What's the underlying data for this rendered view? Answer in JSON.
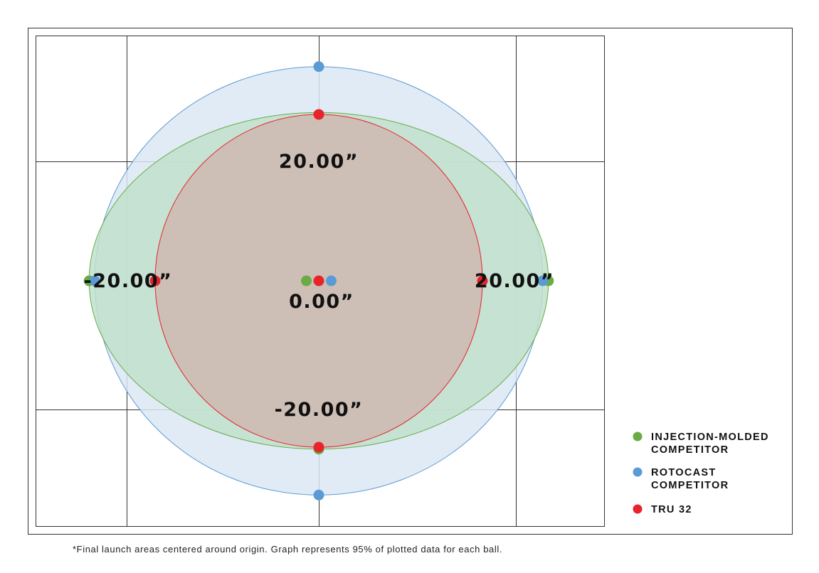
{
  "chart_data": {
    "type": "scatter",
    "units": "inches",
    "xlim": [
      -29.7,
      29.6
    ],
    "ylim": [
      -24.6,
      24.6
    ],
    "grid": true,
    "legend_position": "bottom-right",
    "tick_labels": {
      "x": [
        "-20.00”",
        "0.00”",
        "20.00”"
      ],
      "y": [
        "20.00”",
        "-20.00”"
      ]
    },
    "series": [
      {
        "name": "INJECTION-MOLDED COMPETITOR",
        "legend_lines": [
          "INJECTION-MOLDED",
          "COMPETITOR"
        ],
        "color": "#6aab45",
        "fill": "#bfe1cd",
        "ellipse": {
          "cx": 0,
          "cy": 0,
          "rx": 24.0,
          "ry": 17.6
        },
        "points": [
          [
            -24.0,
            0
          ],
          [
            24.0,
            0
          ],
          [
            0,
            -17.6
          ],
          [
            -1.3,
            0
          ]
        ]
      },
      {
        "name": "ROTOCAST COMPETITOR",
        "legend_lines": [
          "ROTOCAST",
          "COMPETITOR"
        ],
        "color": "#5b9bd5",
        "fill": "#dbe8f5",
        "ellipse": {
          "cx": 0,
          "cy": 0,
          "rx": 23.4,
          "ry": 22.4
        },
        "points": [
          [
            0,
            22.4
          ],
          [
            0,
            -22.4
          ],
          [
            -23.4,
            0
          ],
          [
            23.4,
            0
          ],
          [
            1.3,
            0
          ]
        ]
      },
      {
        "name": "TRU 32",
        "legend_lines": [
          "TRU 32"
        ],
        "color": "#e8232a",
        "fill": "#cfb8b0",
        "ellipse": {
          "cx": 0,
          "cy": 0,
          "rx": 17.1,
          "ry": 17.4
        },
        "points": [
          [
            0,
            17.4
          ],
          [
            0,
            -17.4
          ],
          [
            -17.1,
            0
          ],
          [
            17.1,
            0
          ],
          [
            0,
            0
          ]
        ]
      }
    ],
    "footnote": "*Final launch areas centered around origin. Graph represents 95% of plotted data for each ball."
  }
}
